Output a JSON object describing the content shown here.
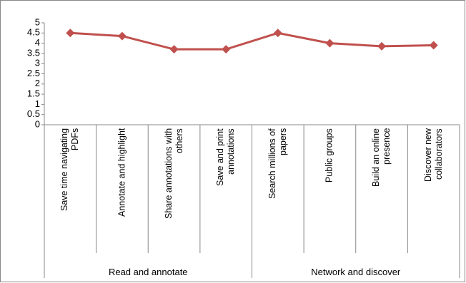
{
  "chart_data": {
    "type": "line",
    "categories": [
      "Save time navigating PDFs",
      "Annotate and highlight",
      "Share annotations with others",
      "Save and print annotations",
      "Search millions of papers",
      "Public groups",
      "Build an online presence",
      "Discover new collaborators"
    ],
    "category_groups": [
      "Read and annotate",
      "Network and discover"
    ],
    "values": [
      4.5,
      4.35,
      3.7,
      3.7,
      4.5,
      4.0,
      3.85,
      3.9
    ],
    "color": "#c0504d",
    "ylim": [
      0,
      5
    ],
    "yticks": [
      0,
      0.5,
      1,
      1.5,
      2,
      2.5,
      3,
      3.5,
      4,
      4.5,
      5
    ],
    "grid": false
  }
}
